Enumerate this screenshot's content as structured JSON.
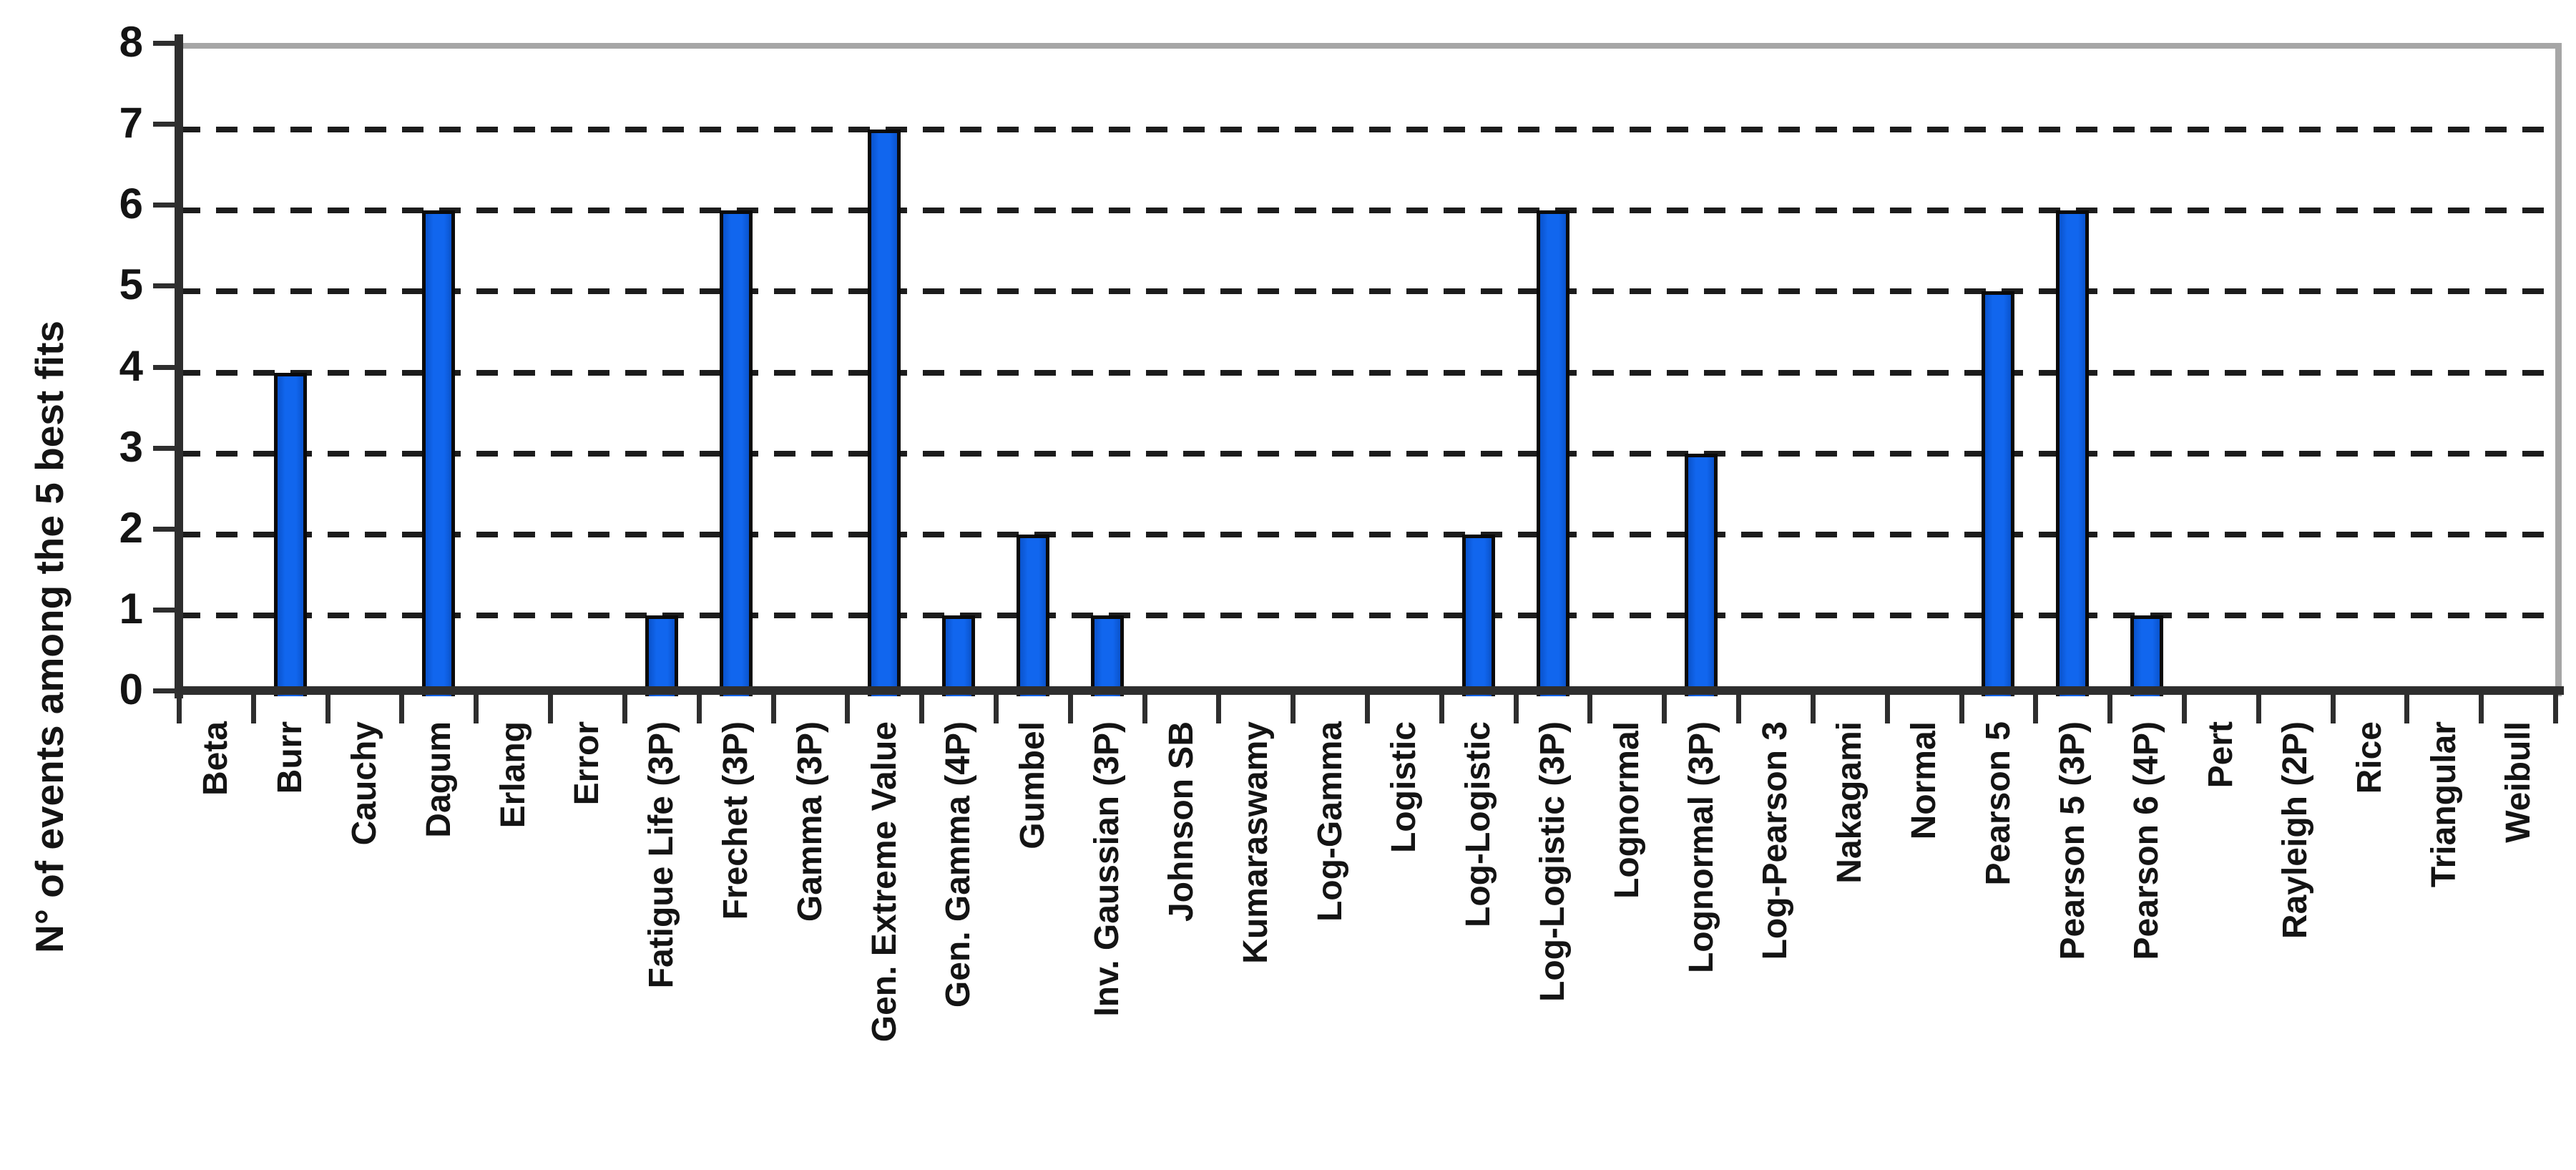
{
  "chart_data": {
    "type": "bar",
    "title": "",
    "xlabel": "",
    "ylabel": "N° of events among the 5 best fits",
    "categories": [
      "Beta",
      "Burr",
      "Cauchy",
      "Dagum",
      "Erlang",
      "Error",
      "Fatigue Life (3P)",
      "Frechet (3P)",
      "Gamma (3P)",
      "Gen. Extreme Value",
      "Gen. Gamma (4P)",
      "Gumbel",
      "Inv. Gaussian (3P)",
      "Johnson SB",
      "Kumaraswamy",
      "Log-Gamma",
      "Logistic",
      "Log-Logistic",
      "Log-Logistic (3P)",
      "Lognormal",
      "Lognormal (3P)",
      "Log-Pearson 3",
      "Nakagami",
      "Normal",
      "Pearson 5",
      "Pearson 5 (3P)",
      "Pearson 6 (4P)",
      "Pert",
      "Rayleigh (2P)",
      "Rice",
      "Triangular",
      "Weibull"
    ],
    "values": [
      0,
      4,
      0,
      6,
      0,
      0,
      1,
      6,
      0,
      7,
      1,
      2,
      1,
      0,
      0,
      0,
      0,
      2,
      6,
      0,
      3,
      0,
      0,
      0,
      5,
      6,
      1,
      0,
      0,
      0,
      0,
      0
    ],
    "ylim": [
      0,
      8
    ],
    "y_ticks": [
      0,
      1,
      2,
      3,
      4,
      5,
      6,
      7,
      8
    ],
    "grid": "horizontal dashed lines at integers 1-7, solid gray border at top and right",
    "legend": "none",
    "bar_color": "#0c60e6",
    "bar_border_color": "#0a0a0a",
    "axis_color": "#2e2e2e",
    "plot_border_color": "#a6a6a6",
    "gridline_color": "#1c1c1c",
    "text_color": "#141414",
    "background_color": "#ffffff"
  }
}
